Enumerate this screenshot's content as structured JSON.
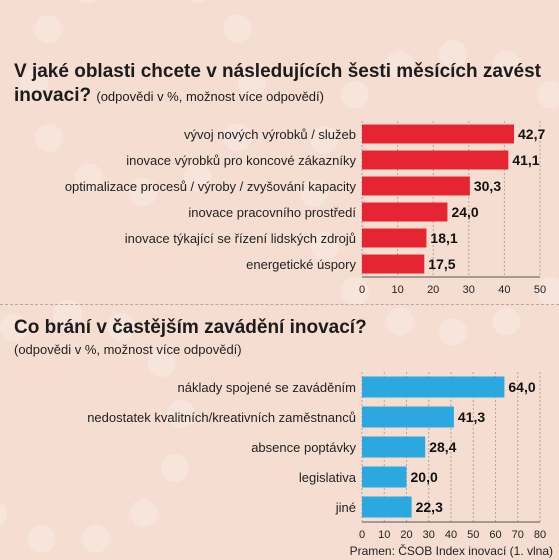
{
  "chart_data": [
    {
      "type": "bar",
      "title": "V jaké oblasti chcete v následujících šesti měsících zavést inovaci?",
      "subtitle": "(odpovědi v %, možnost více odpovědí)",
      "categories": [
        "vývoj nových výrobků / služeb",
        "inovace výrobků pro koncové zákazníky",
        "optimalizace procesů / výroby / zvyšování kapacity",
        "inovace pracovního prostředí",
        "inovace týkající se řízení lidských zdrojů",
        "energetické úspory"
      ],
      "values": [
        42.7,
        41.1,
        30.3,
        24.0,
        18.1,
        17.5
      ],
      "value_labels": [
        "42,7",
        "41,1",
        "30,3",
        "24,0",
        "18,1",
        "17,5"
      ],
      "ticks": [
        "0",
        "10",
        "20",
        "30",
        "40",
        "50"
      ],
      "xlim": [
        0,
        50
      ],
      "color": "#e52632"
    },
    {
      "type": "bar",
      "title": "Co brání v častějším zavádění inovací?",
      "subtitle": "(odpovědi v %, možnost více odpovědí)",
      "categories": [
        "náklady spojené se zaváděním",
        "nedostatek kvalitních/kreativních zaměstnanců",
        "absence poptávky",
        "legislativa",
        "jiné"
      ],
      "values": [
        64.0,
        41.3,
        28.4,
        20.0,
        22.3
      ],
      "value_labels": [
        "64,0",
        "41,3",
        "28,4",
        "20,0",
        "22,3"
      ],
      "ticks": [
        "0",
        "10",
        "20",
        "30",
        "40",
        "50",
        "60",
        "70",
        "80"
      ],
      "xlim": [
        0,
        80
      ],
      "color": "#2aa8df"
    }
  ],
  "source": "Pramen: ČSOB Index inovací (1. vlna)"
}
